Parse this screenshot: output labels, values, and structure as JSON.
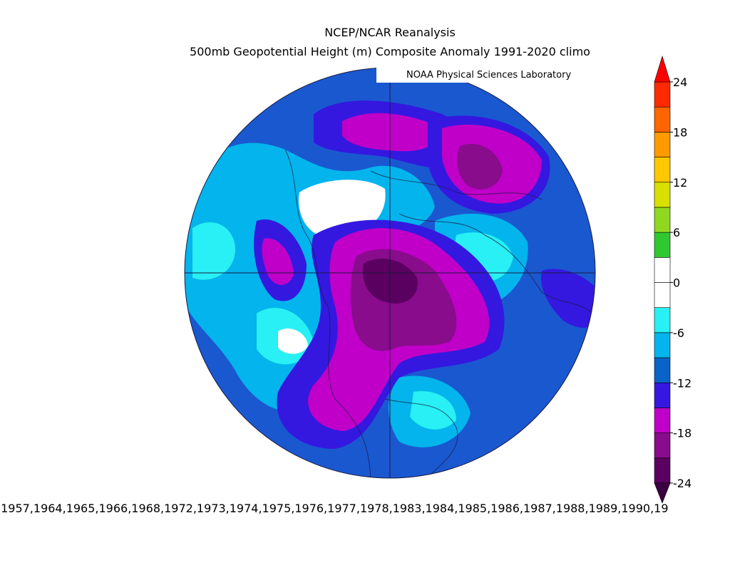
{
  "header": {
    "title": "NCEP/NCAR Reanalysis",
    "subtitle": "500mb Geopotential Height (m) Composite Anomaly 1991-2020 climo",
    "credit": "NOAA Physical Sciences Laboratory"
  },
  "colorbar": {
    "ticks": [
      24,
      18,
      12,
      6,
      0,
      -6,
      -12,
      -18,
      -24
    ],
    "colors": [
      "#5a0060",
      "#880c8c",
      "#c000c8",
      "#3418e0",
      "#0a64c8",
      "#04b4ec",
      "#28f0f4",
      "#ffffff",
      "#ffffff",
      "#30c830",
      "#90d820",
      "#d8e000",
      "#ffc800",
      "#ff9a00",
      "#ff6400",
      "#ff2a00"
    ],
    "under_color": "#3a0040",
    "over_color": "#ff0000"
  },
  "footer": {
    "years": ",1957,1964,1965,1966,1968,1972,1973,1974,1975,1976,1977,1978,1983,1984,1985,1986,1987,1988,1989,1990,19"
  }
}
